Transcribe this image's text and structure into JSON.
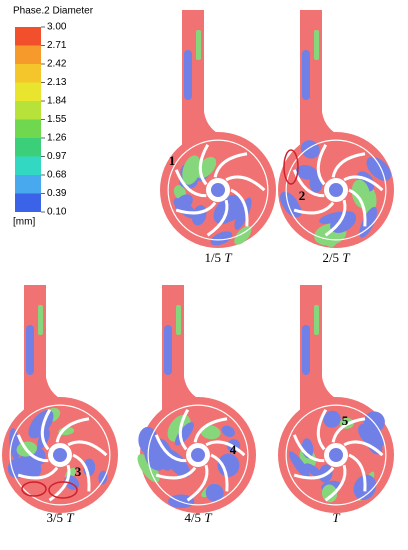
{
  "legend": {
    "title": "Phase.2 Diameter",
    "ticks": [
      "3.00",
      "2.71",
      "2.42",
      "2.13",
      "1.84",
      "1.55",
      "1.26",
      "0.97",
      "0.68",
      "0.39",
      "0.10"
    ],
    "unit": "[mm]"
  },
  "panels": [
    {
      "fraction": "1/5",
      "symbol": "T",
      "marker": "1"
    },
    {
      "fraction": "2/5",
      "symbol": "T",
      "marker": "2"
    },
    {
      "fraction": "3/5",
      "symbol": "T",
      "marker": "3"
    },
    {
      "fraction": "4/5",
      "symbol": "T",
      "marker": "4"
    },
    {
      "symbol": "T",
      "marker": "5"
    }
  ]
}
